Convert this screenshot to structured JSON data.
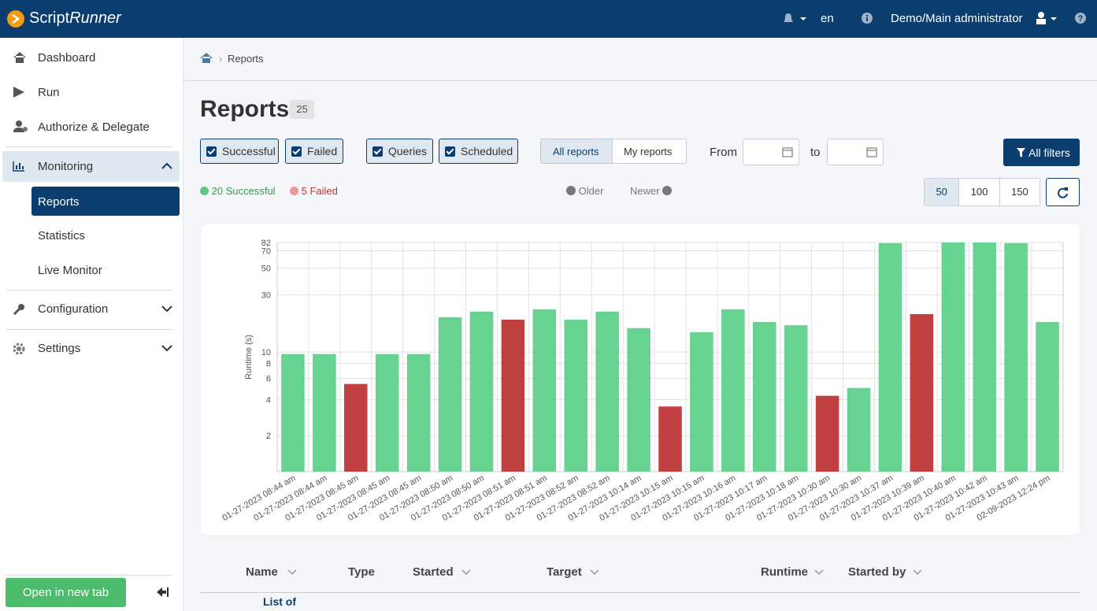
{
  "header": {
    "brand": "Script",
    "brand_italic": "Runner",
    "language": "en",
    "user": "Demo/Main administrator"
  },
  "sidebar": {
    "items": [
      "Dashboard",
      "Run",
      "Authorize & Delegate",
      "Monitoring",
      "Reports",
      "Statistics",
      "Live Monitor",
      "Configuration",
      "Settings"
    ],
    "open_new_tab": "Open in new tab"
  },
  "breadcrumb": "Reports",
  "page": {
    "title": "Reports",
    "count": 25,
    "filters": [
      "Successful",
      "Failed",
      "Queries",
      "Scheduled"
    ],
    "scope": [
      "All reports",
      "My reports"
    ],
    "from": "From",
    "to": "to",
    "all_filters": "All filters",
    "summary_successful": "20 Successful",
    "summary_failed": "5 Failed",
    "older": "Older",
    "newer": "Newer",
    "page_sizes": [
      50,
      100,
      150
    ]
  },
  "table": {
    "columns": [
      "Name",
      "Type",
      "Started",
      "Target",
      "Runtime",
      "Started by"
    ],
    "rows": [
      [
        "List of"
      ]
    ]
  },
  "chart_data": {
    "type": "bar",
    "y_label": "Runtime (s)",
    "log_scale": true,
    "grid": true,
    "categories": [
      "01-27-2023 08:44 am",
      "01-27-2023 08:44 am",
      "01-27-2023 08:45 am",
      "01-27-2023 08:45 am",
      "01-27-2023 08:45 am",
      "01-27-2023 08:50 am",
      "01-27-2023 08:50 am",
      "01-27-2023 08:51 am",
      "01-27-2023 08:51 am",
      "01-27-2023 08:52 am",
      "01-27-2023 08:52 am",
      "01-27-2023 10:14 am",
      "01-27-2023 10:15 am",
      "01-27-2023 10:15 am",
      "01-27-2023 10:16 am",
      "01-27-2023 10:17 am",
      "01-27-2023 10:18 am",
      "01-27-2023 10:30 am",
      "01-27-2023 10:30 am",
      "01-27-2023 10:37 am",
      "01-27-2023 10:39 am",
      "01-27-2023 10:40 am",
      "01-27-2023 10:42 am",
      "01-27-2023 10:43 am",
      "02-09-2023 12:24 pm"
    ],
    "values": [
      9.6,
      9.6,
      5.4,
      9.6,
      9.6,
      19.5,
      21.7,
      18.6,
      22.7,
      18.6,
      21.7,
      15.8,
      3.5,
      14.6,
      22.7,
      17.8,
      16.7,
      4.3,
      5.0,
      81,
      20.7,
      82,
      82,
      81,
      17.8
    ],
    "colors": [
      "#68d391",
      "#68d391",
      "#c0413f",
      "#68d391",
      "#68d391",
      "#68d391",
      "#68d391",
      "#c0413f",
      "#68d391",
      "#68d391",
      "#68d391",
      "#68d391",
      "#c0413f",
      "#68d391",
      "#68d391",
      "#68d391",
      "#68d391",
      "#c0413f",
      "#68d391",
      "#68d391",
      "#c0413f",
      "#68d391",
      "#68d391",
      "#68d391",
      "#68d391"
    ],
    "ylim": [
      1,
      82
    ],
    "yticks": [
      2,
      4,
      6,
      8,
      10,
      30,
      50,
      70,
      82
    ]
  }
}
